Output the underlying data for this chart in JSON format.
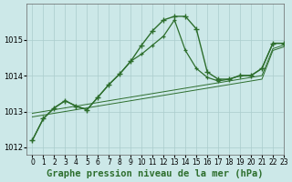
{
  "title": "Graphe pression niveau de la mer (hPa)",
  "background_color": "#cce8e8",
  "grid_color": "#aacccc",
  "line_color": "#2d6e2d",
  "xlim": [
    -0.5,
    23
  ],
  "ylim": [
    1011.8,
    1016.0
  ],
  "yticks": [
    1012,
    1013,
    1014,
    1015
  ],
  "xticks": [
    0,
    1,
    2,
    3,
    4,
    5,
    6,
    7,
    8,
    9,
    10,
    11,
    12,
    13,
    14,
    15,
    16,
    17,
    18,
    19,
    20,
    21,
    22,
    23
  ],
  "series": {
    "main": [
      1012.2,
      1012.8,
      1013.1,
      1013.3,
      1013.15,
      1013.05,
      1013.4,
      1013.75,
      1014.05,
      1014.4,
      1014.85,
      1015.25,
      1015.55,
      1015.65,
      1015.65,
      1015.3,
      1014.1,
      1013.9,
      1013.9,
      1014.0,
      1014.0,
      1014.2,
      1014.9,
      1014.9
    ],
    "secondary": [
      1012.2,
      1012.8,
      1013.1,
      1013.3,
      1013.15,
      1013.05,
      1013.4,
      1013.75,
      1014.05,
      1014.4,
      1014.6,
      1014.85,
      1015.1,
      1015.55,
      1014.7,
      1014.2,
      1013.95,
      1013.85,
      1013.9,
      1014.0,
      1014.0,
      1014.2,
      1014.9,
      1014.9
    ],
    "trend1": [
      1012.95,
      1013.0,
      1013.05,
      1013.1,
      1013.15,
      1013.2,
      1013.25,
      1013.3,
      1013.35,
      1013.4,
      1013.45,
      1013.5,
      1013.55,
      1013.6,
      1013.65,
      1013.7,
      1013.75,
      1013.8,
      1013.85,
      1013.9,
      1013.95,
      1014.0,
      1014.75,
      1014.85
    ],
    "trend2": [
      1012.85,
      1012.9,
      1012.95,
      1013.0,
      1013.05,
      1013.1,
      1013.15,
      1013.2,
      1013.25,
      1013.3,
      1013.35,
      1013.4,
      1013.45,
      1013.5,
      1013.55,
      1013.6,
      1013.65,
      1013.7,
      1013.75,
      1013.8,
      1013.85,
      1013.9,
      1014.7,
      1014.8
    ]
  },
  "title_fontsize": 7.5,
  "tick_fontsize": 6
}
